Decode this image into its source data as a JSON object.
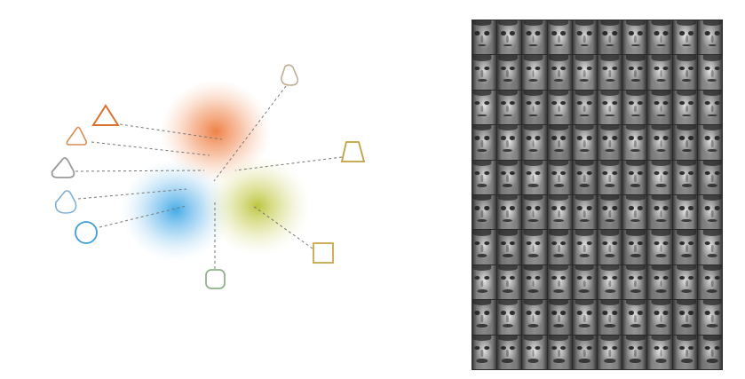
{
  "figure": {
    "blobs": [
      {
        "name": "orange-cluster",
        "color": "#ef7a3c"
      },
      {
        "name": "blue-cluster",
        "color": "#3ba7e6"
      },
      {
        "name": "olive-cluster",
        "color": "#b6bf2a"
      }
    ],
    "shapes": [
      {
        "name": "triangle-orange",
        "kind": "triangle",
        "color": "#d9722f"
      },
      {
        "name": "rounded-triangle-orange",
        "kind": "rounded-triangle",
        "color": "#d98e5a"
      },
      {
        "name": "rounded-triangle-gray",
        "kind": "rounded-triangle",
        "color": "#999999"
      },
      {
        "name": "rounded-triangle-blue",
        "kind": "rounded-triangle",
        "color": "#7fb0d6"
      },
      {
        "name": "circle-blue",
        "kind": "circle",
        "color": "#3e9fd8"
      },
      {
        "name": "rounded-square-green",
        "kind": "rounded-square",
        "color": "#8fb48a"
      },
      {
        "name": "square-olive",
        "kind": "square",
        "color": "#c9a84a"
      },
      {
        "name": "trapezoid-olive",
        "kind": "trapezoid",
        "color": "#c0a040"
      },
      {
        "name": "rounded-triangle-tan",
        "kind": "rounded-triangle",
        "color": "#c2ad93"
      }
    ],
    "connector_color": "#777777"
  },
  "face_grid": {
    "rows": 10,
    "columns": 10
  }
}
